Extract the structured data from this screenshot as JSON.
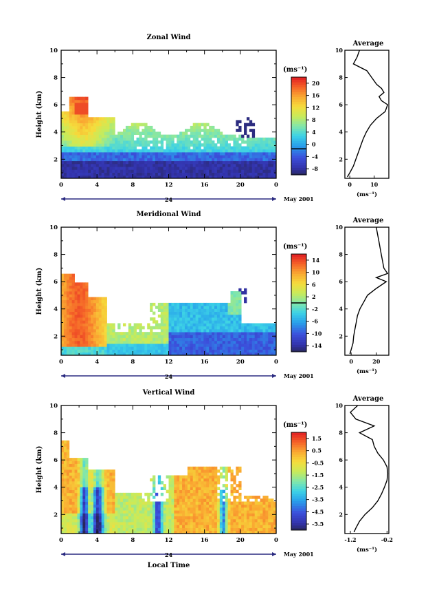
{
  "figure": {
    "date_label": "May 2001",
    "day_label": "24",
    "xlabel_bottom": "Local Time",
    "ylabel": "Height (km)",
    "unit_label": "(ms⁻¹)",
    "average_title": "Average"
  },
  "chart_data": [
    {
      "type": "heatmap",
      "id": "zonal",
      "title": "Zonal Wind",
      "xlabel": "",
      "ylabel": "Height (km)",
      "xlim": [
        0,
        24
      ],
      "ylim": [
        0.6,
        10
      ],
      "x_ticks": [
        "0",
        "4",
        "8",
        "12",
        "16",
        "20",
        "0"
      ],
      "y_ticks": [
        "2",
        "4",
        "6",
        "8",
        "10"
      ],
      "colorbar": {
        "label": "(ms⁻¹)",
        "min": -8,
        "max": 22,
        "ticks": [
          "20",
          "16",
          "12",
          "8",
          "4",
          "0",
          "-4",
          "-8"
        ],
        "contour_level": 0
      },
      "average_profile": {
        "title": "Average",
        "xlabel": "(ms⁻¹)",
        "xlim": [
          -2,
          16
        ],
        "x_ticks": [
          "0",
          "10"
        ],
        "height_km": [
          0.7,
          1,
          1.5,
          2,
          2.5,
          3,
          3.5,
          4,
          4.5,
          5,
          5.5,
          6,
          6.3,
          6.6,
          6.9,
          7.2,
          7.5,
          8,
          8.5,
          9,
          9.5,
          10
        ],
        "values": [
          -1,
          0,
          1.5,
          2.5,
          3.5,
          4.5,
          5.5,
          6.8,
          8.5,
          11,
          14.5,
          15.5,
          13,
          12,
          14,
          13,
          11,
          9,
          7,
          1.5,
          3,
          4
        ]
      }
    },
    {
      "type": "heatmap",
      "id": "meridional",
      "title": "Meridional Wind",
      "xlabel": "",
      "ylabel": "Height (km)",
      "xlim": [
        0,
        24
      ],
      "ylim": [
        0.6,
        10
      ],
      "x_ticks": [
        "0",
        "4",
        "8",
        "12",
        "16",
        "20",
        "0"
      ],
      "y_ticks": [
        "2",
        "4",
        "6",
        "8",
        "10"
      ],
      "colorbar": {
        "label": "(ms⁻¹)",
        "min": -16,
        "max": 16,
        "ticks": [
          "14",
          "10",
          "6",
          "2",
          "-2",
          "-6",
          "-10",
          "-14"
        ],
        "contour_level": 0
      },
      "average_profile": {
        "title": "Average",
        "xlabel": "(ms⁻¹)",
        "xlim": [
          -5,
          30
        ],
        "x_ticks": [
          "0",
          "20"
        ],
        "height_km": [
          0.7,
          1,
          1.5,
          2,
          2.5,
          3,
          3.5,
          4,
          4.5,
          5,
          5.5,
          6,
          6.3,
          6.6,
          7,
          7.5,
          8,
          8.5,
          9,
          9.5,
          10
        ],
        "values": [
          -1,
          0,
          1.5,
          2,
          3,
          4,
          5,
          7,
          10,
          13,
          20,
          28,
          20,
          29,
          26,
          25,
          24,
          23,
          22,
          21,
          20
        ]
      }
    },
    {
      "type": "heatmap",
      "id": "vertical",
      "title": "Vertical Wind",
      "xlabel": "Local Time",
      "ylabel": "Height (km)",
      "xlim": [
        0,
        24
      ],
      "ylim": [
        0.6,
        10
      ],
      "x_ticks": [
        "0",
        "4",
        "8",
        "12",
        "16",
        "20",
        "0"
      ],
      "y_ticks": [
        "2",
        "4",
        "6",
        "8",
        "10"
      ],
      "colorbar": {
        "label": "(ms⁻¹)",
        "min": -6,
        "max": 2,
        "ticks": [
          "1.5",
          "0.5",
          "-0.5",
          "-1.5",
          "-2.5",
          "-3.5",
          "-4.5",
          "-5.5"
        ]
      },
      "average_profile": {
        "title": "Average",
        "xlabel": "(ms⁻¹)",
        "xlim": [
          -1.35,
          -0.15
        ],
        "x_ticks": [
          "-1.2",
          "-0.2"
        ],
        "height_km": [
          0.7,
          1,
          1.5,
          2,
          2.5,
          3,
          3.5,
          4,
          4.5,
          5,
          5.5,
          6,
          6.5,
          7,
          7.5,
          8,
          8.5,
          9,
          9.5,
          10
        ],
        "values": [
          -1.1,
          -1.05,
          -0.95,
          -0.8,
          -0.6,
          -0.45,
          -0.35,
          -0.27,
          -0.2,
          -0.18,
          -0.2,
          -0.3,
          -0.45,
          -0.55,
          -0.6,
          -0.95,
          -0.55,
          -1.05,
          -1.2,
          -1.0
        ]
      }
    }
  ]
}
